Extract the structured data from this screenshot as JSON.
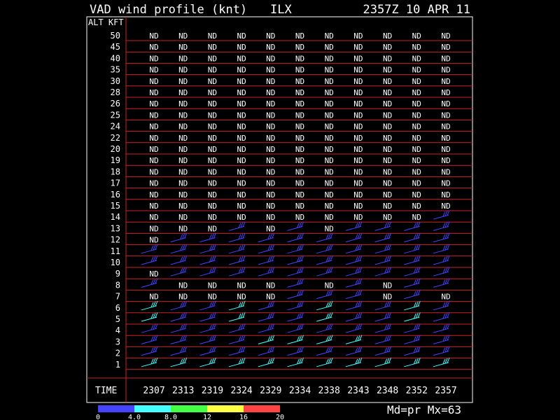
{
  "header": {
    "title": "VAD wind profile (knt)",
    "station": "ILX",
    "datetime": "2357Z 10 APR 11"
  },
  "chart_data": {
    "type": "table",
    "alt_header": "ALT KFT",
    "time_header": "TIME",
    "altitudes": [
      "50",
      "45",
      "40",
      "35",
      "30",
      "28",
      "26",
      "25",
      "24",
      "22",
      "20",
      "19",
      "18",
      "17",
      "16",
      "15",
      "14",
      "13",
      "12",
      "11",
      "10",
      "9",
      "8",
      "7",
      "6",
      "5",
      "4",
      "3",
      "2",
      "1"
    ],
    "times": [
      "2307",
      "2313",
      "2319",
      "2324",
      "2329",
      "2334",
      "2338",
      "2343",
      "2348",
      "2352",
      "2357"
    ],
    "nd_label": "ND",
    "nd_cells": {
      "50": "11111111111",
      "45": "11111111111",
      "40": "11111111111",
      "35": "11111111111",
      "30": "11111111111",
      "28": "11111111111",
      "26": "11111111111",
      "25": "11111111111",
      "24": "11111111111",
      "22": "11111111111",
      "20": "11111111111",
      "19": "11111111111",
      "18": "11111111111",
      "17": "11111111111",
      "16": "11111111111",
      "15": "11111111111",
      "14": "11111111110",
      "13": "11101010000",
      "12": "10000000000",
      "11": "00000000000",
      "10": "00000000000",
      "9": "10000000000",
      "8": "01111010100",
      "7": "11111000101",
      "6": "00000000000",
      "5": "00000000000",
      "4": "00000000000",
      "3": "00000000000",
      "2": "00000000000",
      "1": "00000000000"
    },
    "legend": {
      "ticks": [
        "0",
        "4.0",
        "8.0",
        "12",
        "16",
        "20"
      ],
      "colors": [
        "#4444ff",
        "#44ffff",
        "#44ff44",
        "#ffff44",
        "#ff4444"
      ],
      "status": "Md=pr Mx=63"
    }
  },
  "colors": {
    "frame": "#ffffff",
    "gridline": "#cc2222",
    "barb_blue": "#4444ff",
    "barb_cyan": "#44ffff",
    "barb_green": "#44ff44"
  }
}
